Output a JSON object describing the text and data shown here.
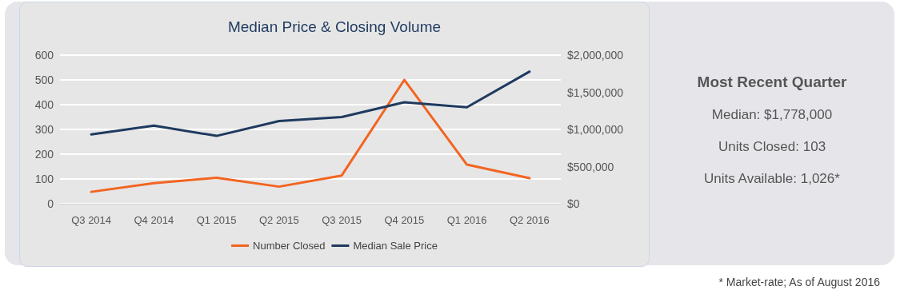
{
  "chart_data": {
    "type": "line",
    "title": "Median Price & Closing Volume",
    "categories": [
      "Q3 2014",
      "Q4 2014",
      "Q1 2015",
      "Q2 2015",
      "Q3 2015",
      "Q4 2015",
      "Q1 2016",
      "Q2 2016"
    ],
    "series": [
      {
        "name": "Number Closed",
        "color": "#f26522",
        "values": [
          48,
          83,
          105,
          69,
          114,
          500,
          158,
          103
        ]
      },
      {
        "name": "Median Sale Price",
        "color": "#1f3a5f",
        "axis": "y2",
        "values": [
          933000,
          1052000,
          913000,
          1112000,
          1166000,
          1366000,
          1298000,
          1778000
        ]
      }
    ],
    "ylim": [
      0,
      600
    ],
    "yticks": [
      0,
      100,
      200,
      300,
      400,
      500,
      600
    ],
    "y2lim": [
      0,
      2000000
    ],
    "y2ticks": [
      {
        "value": 0,
        "label": "$0"
      },
      {
        "value": 500000,
        "label": "$500,000"
      },
      {
        "value": 1000000,
        "label": "$1,000,000"
      },
      {
        "value": 1500000,
        "label": "$1,500,000"
      },
      {
        "value": 2000000,
        "label": "$2,000,000"
      }
    ],
    "grid": "y",
    "legend": "bottom",
    "marker": "none",
    "line_style": "solid",
    "annotations": [
      "Most Recent Quarter",
      "Median: $1,778,000",
      "Units Closed: 103",
      "Units Available: 1,026*",
      "* Market-rate; As of August 2016"
    ]
  }
}
